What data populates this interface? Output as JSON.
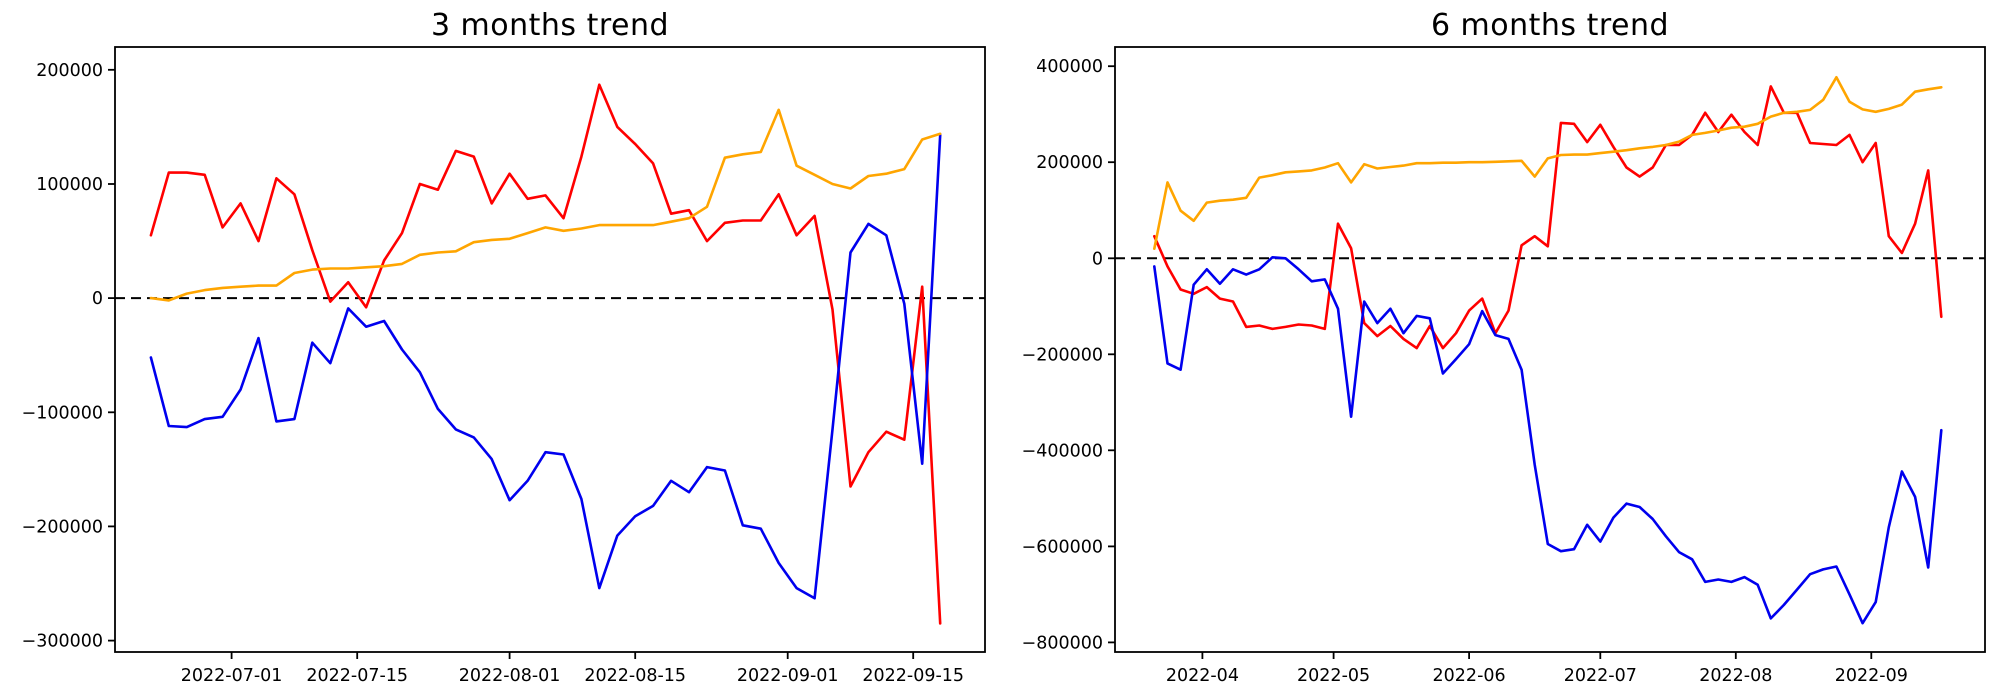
{
  "page": {
    "background": "#ffffff"
  },
  "chart_data": [
    {
      "type": "line",
      "title": "3 months trend",
      "grid": false,
      "legend": false,
      "zero_line": true,
      "xlim": [
        "2022-06-18",
        "2022-09-23"
      ],
      "ylim": [
        -310000,
        220000
      ],
      "yticks": [
        {
          "v": 200000,
          "label": "200000"
        },
        {
          "v": 100000,
          "label": "100000"
        },
        {
          "v": 0,
          "label": "0"
        },
        {
          "v": -100000,
          "label": "−100000"
        },
        {
          "v": -200000,
          "label": "−200000"
        },
        {
          "v": -300000,
          "label": "−300000"
        }
      ],
      "xticks": [
        {
          "d": "2022-07-01",
          "label": "2022-07-01"
        },
        {
          "d": "2022-07-15",
          "label": "2022-07-15"
        },
        {
          "d": "2022-08-01",
          "label": "2022-08-01"
        },
        {
          "d": "2022-08-15",
          "label": "2022-08-15"
        },
        {
          "d": "2022-09-01",
          "label": "2022-09-01"
        },
        {
          "d": "2022-09-15",
          "label": "2022-09-15"
        }
      ],
      "x_dates": [
        "2022-06-22",
        "2022-06-24",
        "2022-06-26",
        "2022-06-28",
        "2022-06-30",
        "2022-07-02",
        "2022-07-04",
        "2022-07-06",
        "2022-07-08",
        "2022-07-10",
        "2022-07-12",
        "2022-07-14",
        "2022-07-16",
        "2022-07-18",
        "2022-07-20",
        "2022-07-22",
        "2022-07-24",
        "2022-07-26",
        "2022-07-28",
        "2022-07-30",
        "2022-08-01",
        "2022-08-03",
        "2022-08-05",
        "2022-08-07",
        "2022-08-09",
        "2022-08-11",
        "2022-08-13",
        "2022-08-15",
        "2022-08-17",
        "2022-08-19",
        "2022-08-21",
        "2022-08-23",
        "2022-08-25",
        "2022-08-27",
        "2022-08-29",
        "2022-08-31",
        "2022-09-02",
        "2022-09-04",
        "2022-09-06",
        "2022-09-08",
        "2022-09-10",
        "2022-09-12",
        "2022-09-14",
        "2022-09-16",
        "2022-09-18"
      ],
      "series": [
        {
          "name": "red",
          "color": "#ff0000",
          "values": [
            55000,
            110000,
            110000,
            108000,
            62000,
            83000,
            50000,
            105000,
            91000,
            42000,
            -3000,
            14000,
            -8000,
            33000,
            57000,
            100000,
            95000,
            129000,
            124000,
            83000,
            109000,
            87000,
            90000,
            70000,
            124000,
            187000,
            150000,
            135000,
            118000,
            74000,
            77000,
            50000,
            66000,
            68000,
            68000,
            91000,
            55000,
            72000,
            -10000,
            -165000,
            -135000,
            -117000,
            -124000,
            10000,
            -285000
          ]
        },
        {
          "name": "blue",
          "color": "#0000ee",
          "values": [
            -52000,
            -112000,
            -113000,
            -106000,
            -104000,
            -80000,
            -35000,
            -108000,
            -106000,
            -39000,
            -57000,
            -9000,
            -25000,
            -20000,
            -45000,
            -65000,
            -97000,
            -115000,
            -122000,
            -141000,
            -177000,
            -160000,
            -135000,
            -137000,
            -176000,
            -254000,
            -208000,
            -191000,
            -182000,
            -160000,
            -170000,
            -148000,
            -151000,
            -199000,
            -202000,
            -232000,
            -254000,
            -263000,
            -115000,
            40000,
            65000,
            55000,
            -5000,
            -145000,
            143000
          ]
        },
        {
          "name": "orange",
          "color": "#ffa500",
          "values": [
            0,
            -2000,
            4000,
            7000,
            9000,
            10000,
            11000,
            11000,
            22000,
            25000,
            26000,
            26000,
            27000,
            28000,
            30000,
            38000,
            40000,
            41000,
            49000,
            51000,
            52000,
            57000,
            62000,
            59000,
            61000,
            64000,
            64000,
            64000,
            64000,
            67000,
            70000,
            80000,
            123000,
            126000,
            128000,
            165000,
            116000,
            108000,
            100000,
            96000,
            107000,
            109000,
            113000,
            139000,
            144000
          ]
        }
      ]
    },
    {
      "type": "line",
      "title": "6 months trend",
      "grid": false,
      "legend": false,
      "zero_line": true,
      "xlim": [
        "2022-03-12",
        "2022-09-27"
      ],
      "ylim": [
        -820000,
        440000
      ],
      "yticks": [
        {
          "v": 400000,
          "label": "400000"
        },
        {
          "v": 200000,
          "label": "200000"
        },
        {
          "v": 0,
          "label": "0"
        },
        {
          "v": -200000,
          "label": "−200000"
        },
        {
          "v": -400000,
          "label": "−400000"
        },
        {
          "v": -600000,
          "label": "−600000"
        },
        {
          "v": -800000,
          "label": "−800000"
        }
      ],
      "xticks": [
        {
          "d": "2022-04-01",
          "label": "2022-04"
        },
        {
          "d": "2022-05-01",
          "label": "2022-05"
        },
        {
          "d": "2022-06-01",
          "label": "2022-06"
        },
        {
          "d": "2022-07-01",
          "label": "2022-07"
        },
        {
          "d": "2022-08-01",
          "label": "2022-08"
        },
        {
          "d": "2022-09-01",
          "label": "2022-09"
        }
      ],
      "x_dates": [
        "2022-03-21",
        "2022-03-24",
        "2022-03-27",
        "2022-03-30",
        "2022-04-02",
        "2022-04-05",
        "2022-04-08",
        "2022-04-11",
        "2022-04-14",
        "2022-04-17",
        "2022-04-20",
        "2022-04-23",
        "2022-04-26",
        "2022-04-29",
        "2022-05-02",
        "2022-05-05",
        "2022-05-08",
        "2022-05-11",
        "2022-05-14",
        "2022-05-17",
        "2022-05-20",
        "2022-05-23",
        "2022-05-26",
        "2022-05-29",
        "2022-06-01",
        "2022-06-04",
        "2022-06-07",
        "2022-06-10",
        "2022-06-13",
        "2022-06-16",
        "2022-06-19",
        "2022-06-22",
        "2022-06-25",
        "2022-06-28",
        "2022-07-01",
        "2022-07-04",
        "2022-07-07",
        "2022-07-10",
        "2022-07-13",
        "2022-07-16",
        "2022-07-19",
        "2022-07-22",
        "2022-07-25",
        "2022-07-28",
        "2022-07-31",
        "2022-08-03",
        "2022-08-06",
        "2022-08-09",
        "2022-08-12",
        "2022-08-15",
        "2022-08-18",
        "2022-08-21",
        "2022-08-24",
        "2022-08-27",
        "2022-08-30",
        "2022-09-02",
        "2022-09-05",
        "2022-09-08",
        "2022-09-11",
        "2022-09-14",
        "2022-09-17"
      ],
      "series": [
        {
          "name": "red",
          "color": "#ff0000",
          "values": [
            46000,
            -17000,
            -65000,
            -74000,
            -60000,
            -84000,
            -90000,
            -143000,
            -140000,
            -147000,
            -143000,
            -138000,
            -140000,
            -147000,
            72000,
            21000,
            -135000,
            -162000,
            -141000,
            -168000,
            -187000,
            -141000,
            -187000,
            -156000,
            -109000,
            -84000,
            -156000,
            -109000,
            27000,
            46000,
            25000,
            282000,
            280000,
            242000,
            278000,
            232000,
            189000,
            170000,
            189000,
            236000,
            236000,
            257000,
            303000,
            263000,
            299000,
            263000,
            236000,
            358000,
            303000,
            303000,
            240000,
            238000,
            236000,
            257000,
            200000,
            240000,
            46000,
            11000,
            72000,
            183000,
            -122000
          ]
        },
        {
          "name": "blue",
          "color": "#0000ee",
          "values": [
            -17000,
            -219000,
            -232000,
            -55000,
            -23000,
            -53000,
            -23000,
            -34000,
            -23000,
            2000,
            0,
            -23000,
            -48000,
            -44000,
            -105000,
            -330000,
            -90000,
            -135000,
            -105000,
            -156000,
            -120000,
            -125000,
            -240000,
            -210000,
            -179000,
            -110000,
            -160000,
            -168000,
            -232000,
            -430000,
            -595000,
            -610000,
            -606000,
            -555000,
            -590000,
            -540000,
            -511000,
            -518000,
            -543000,
            -579000,
            -612000,
            -627000,
            -674000,
            -669000,
            -674000,
            -664000,
            -680000,
            -750000,
            -722000,
            -690000,
            -658000,
            -648000,
            -642000,
            -700000,
            -760000,
            -716000,
            -560000,
            -444000,
            -497000,
            -644000,
            -358000
          ]
        },
        {
          "name": "orange",
          "color": "#ffa500",
          "values": [
            20000,
            158000,
            99000,
            78000,
            116000,
            120000,
            122000,
            126000,
            168000,
            173000,
            179000,
            181000,
            183000,
            189000,
            198000,
            158000,
            196000,
            187000,
            190000,
            193000,
            198000,
            198000,
            199000,
            199000,
            200000,
            200000,
            201000,
            202000,
            203000,
            170000,
            208000,
            215000,
            216000,
            216000,
            219000,
            222000,
            225000,
            229000,
            232000,
            236000,
            243000,
            257000,
            261000,
            266000,
            272000,
            274000,
            280000,
            295000,
            303000,
            305000,
            309000,
            330000,
            377000,
            326000,
            310000,
            305000,
            311000,
            320000,
            347000,
            352000,
            356000
          ]
        }
      ]
    }
  ]
}
